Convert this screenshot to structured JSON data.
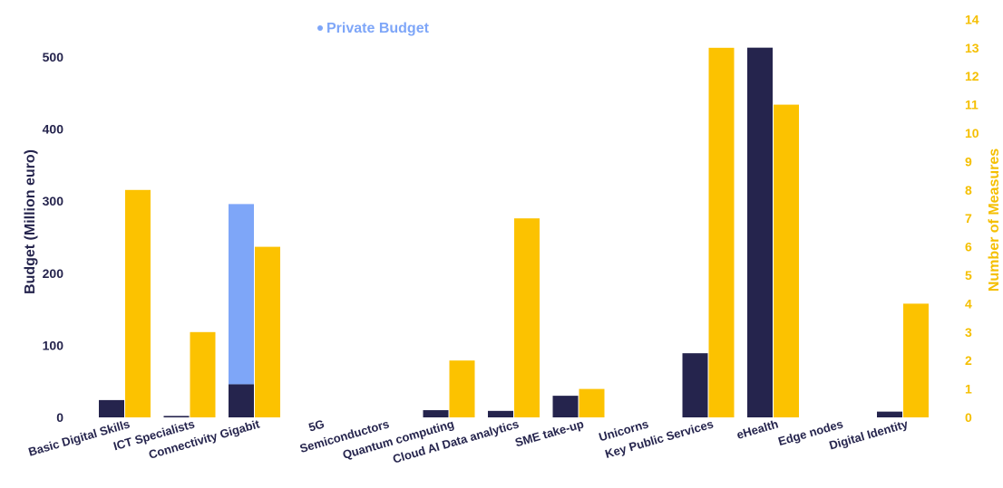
{
  "chart_data": {
    "type": "bar",
    "categories": [
      "Basic Digital Skills",
      "ICT Specialists",
      "Connectivity Gigabit",
      "5G",
      "Semiconductors",
      "Quantum computing",
      "Cloud AI Data analytics",
      "SME take-up",
      "Unicorns",
      "Key Public Services",
      "eHealth",
      "Edge nodes",
      "Digital Identity"
    ],
    "series": [
      {
        "axis": "left",
        "color": "#25244d",
        "values": [
          24,
          2,
          46,
          0,
          0,
          10,
          9,
          30,
          0,
          89,
          513,
          0,
          8
        ]
      },
      {
        "name": "Private Budget",
        "axis": "left",
        "stacked_on": 0,
        "color": "#7ea6f8",
        "values": [
          0,
          0,
          250,
          0,
          0,
          0,
          0,
          0,
          0,
          0,
          0,
          0,
          0
        ]
      },
      {
        "axis": "right",
        "color": "#fcc200",
        "values": [
          8,
          3,
          6,
          0,
          0,
          2,
          7,
          1,
          0,
          13,
          11,
          0,
          4
        ]
      }
    ],
    "ylabel": "Budget (Million euro)",
    "y2label": "Number of Measures",
    "ylim": [
      0,
      520
    ],
    "y2lim": [
      0,
      14
    ],
    "yticks": [
      0,
      100,
      200,
      300,
      400,
      500
    ],
    "y2ticks": [
      0,
      1,
      2,
      3,
      4,
      5,
      6,
      7,
      8,
      9,
      10,
      11,
      12,
      13,
      14
    ],
    "legend": {
      "position": "top-center",
      "entries": [
        "Private Budget"
      ]
    },
    "grid": false
  }
}
